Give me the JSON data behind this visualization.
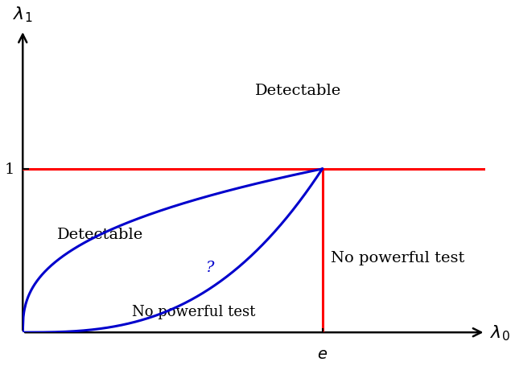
{
  "xlabel": "$\\lambda_0$",
  "ylabel": "$\\lambda_1$",
  "xlim": [
    0,
    4.2
  ],
  "ylim": [
    0,
    1.85
  ],
  "e_value": 2.718281828,
  "y_line_value": 1.0,
  "label_detectable_top": "Detectable",
  "label_detectable_left": "Detectable",
  "label_no_powerful_right": "No powerful test",
  "label_no_powerful_bottom": "No powerful test",
  "label_question": "?",
  "tick_1_label": "1",
  "tick_e_label": "$e$",
  "background_color": "#ffffff",
  "curve_color": "#0000cc",
  "hline_color": "#ff0000",
  "vline_color": "#ff0000",
  "axis_color": "#000000",
  "curve_linewidth": 2.2,
  "hline_linewidth": 2.2,
  "vline_linewidth": 2.2,
  "text_fontsize": 14,
  "tick_fontsize": 14,
  "axis_label_fontsize": 16,
  "alpha_outer": 0.38,
  "alpha_inner": 2.8
}
